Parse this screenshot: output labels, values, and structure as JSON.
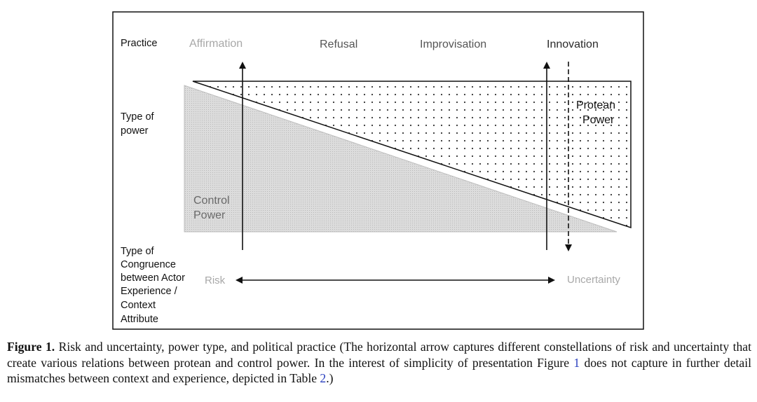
{
  "rows": {
    "practice": "Practice",
    "power_type": [
      "Type of",
      "power"
    ],
    "congruence": [
      "Type of",
      "Congruence",
      "between Actor",
      "Experience /",
      "Context",
      "Attribute"
    ]
  },
  "practices": [
    "Affirmation",
    "Refusal",
    "Improvisation",
    "Innovation"
  ],
  "regions": {
    "protean": [
      "Protean",
      "Power"
    ],
    "control": [
      "Control",
      "Power"
    ]
  },
  "axis": {
    "left": "Risk",
    "right": "Uncertainty"
  },
  "caption": {
    "label": "Figure 1.",
    "text_before_ref1": " Risk and uncertainty, power type, and political practice (The horizontal arrow captures different constellations of risk and uncertainty that create various relations between protean and control power. In the interest of simplicity of presentation Figure ",
    "ref1": "1",
    "text_between": " does not capture in further detail mismatches between context and experience, depicted in Table ",
    "ref2": "2",
    "text_after": ".)"
  },
  "colors": {
    "faded_text": "#a8a8a8",
    "dark_text": "#2a2a2a",
    "control_fill": "#d4d4d4",
    "ref_link": "#2a3fbf"
  }
}
